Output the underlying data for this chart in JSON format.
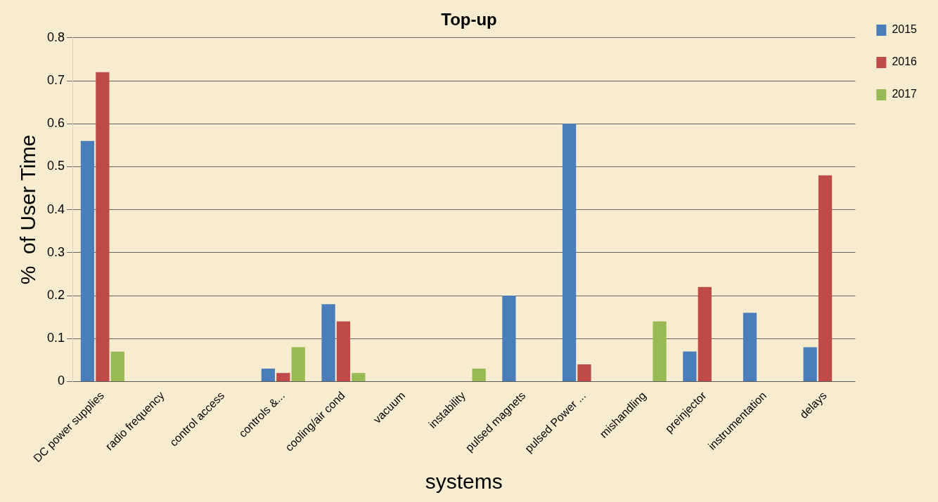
{
  "chart_data": {
    "type": "bar",
    "title": "Top-up",
    "xlabel": "systems",
    "ylabel": "%  of User Time",
    "categories": [
      "DC power supplies",
      "radio frequency",
      "control access",
      "controls &...",
      "cooling/air cond",
      "vacuum",
      "instability",
      "pulsed magnets",
      "pulsed Power ...",
      "mishandling",
      "preinjector",
      "instrumentation",
      "delays"
    ],
    "series": [
      {
        "name": "2015",
        "color": "#4a7ebb",
        "values": [
          0.56,
          0,
          0,
          0.03,
          0.18,
          0,
          0,
          0.2,
          0.6,
          0,
          0.07,
          0.16,
          0.08
        ]
      },
      {
        "name": "2016",
        "color": "#be4b48",
        "values": [
          0.72,
          0,
          0,
          0.02,
          0.14,
          0,
          0,
          0,
          0.04,
          0,
          0.22,
          0,
          0.48
        ]
      },
      {
        "name": "2017",
        "color": "#98b954",
        "values": [
          0.07,
          0,
          0,
          0.08,
          0.02,
          0,
          0.03,
          0,
          0,
          0.14,
          0,
          0,
          0
        ]
      }
    ],
    "ylim": [
      0,
      0.8
    ],
    "yticks": [
      0,
      0.1,
      0.2,
      0.3,
      0.4,
      0.5,
      0.6,
      0.7,
      0.8
    ],
    "grid": "y",
    "legend": "right"
  }
}
